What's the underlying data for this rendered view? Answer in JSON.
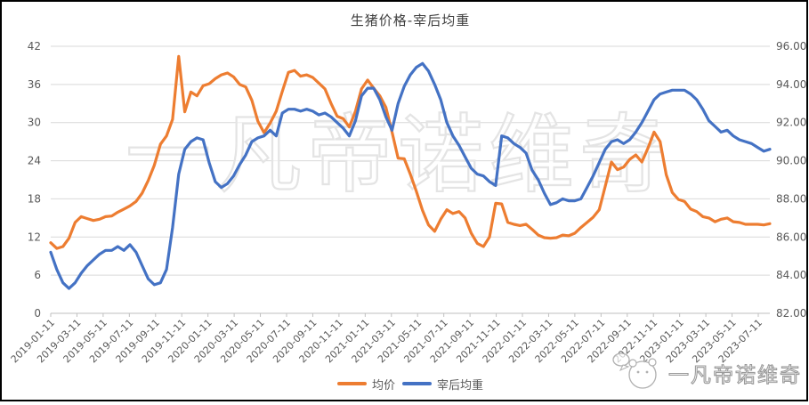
{
  "header": {
    "title": "生猪价格-宰后均重"
  },
  "watermarks": {
    "center": "一凡帝诺维奇",
    "corner": "一凡帝诺维奇"
  },
  "legend": {
    "items": [
      {
        "label": "均价",
        "color": "#ED7D31"
      },
      {
        "label": "宰后均重",
        "color": "#4472C4"
      }
    ]
  },
  "colors": {
    "grid": "#D9D9D9",
    "axis": "#BFBFBF",
    "tick_text": "#595959",
    "title_text": "#3F3F3F",
    "center_watermark": "#E4E4E4",
    "corner_watermark": "#9B9B9B"
  },
  "chart_data": {
    "type": "line",
    "title": "生猪价格-宰后均重",
    "start_date": "2019-01-11",
    "interval_days": 14,
    "grid": "horizontal",
    "legend_position": "bottom",
    "x_tick_labels": [
      "2019-01-11",
      "2019-03-11",
      "2019-05-11",
      "2019-07-11",
      "2019-09-11",
      "2019-11-11",
      "2020-01-11",
      "2020-03-11",
      "2020-05-11",
      "2020-07-11",
      "2020-09-11",
      "2020-11-11",
      "2021-01-11",
      "2021-03-11",
      "2021-05-11",
      "2021-07-11",
      "2021-09-11",
      "2021-11-11",
      "2022-01-11",
      "2022-03-11",
      "2022-05-11",
      "2022-07-11",
      "2022-09-11",
      "2022-11-11",
      "2023-01-11",
      "2023-03-11",
      "2023-05-11",
      "2023-07-11"
    ],
    "left_axis": {
      "min": 0,
      "max": 42,
      "ticks": [
        "0",
        "6",
        "12",
        "18",
        "24",
        "30",
        "36",
        "42"
      ]
    },
    "right_axis": {
      "min": 82,
      "max": 96,
      "ticks": [
        "82.00",
        "84.00",
        "86.00",
        "88.00",
        "90.00",
        "92.00",
        "94.00",
        "96.00"
      ]
    },
    "series": [
      {
        "name": "均价",
        "axis": "left",
        "color": "#ED7D31",
        "values": [
          11.1,
          10.2,
          10.5,
          11.8,
          14.3,
          15.2,
          14.9,
          14.6,
          14.8,
          15.2,
          15.3,
          15.9,
          16.4,
          16.9,
          17.6,
          18.9,
          20.9,
          23.3,
          26.6,
          27.9,
          30.5,
          40.4,
          31.7,
          34.8,
          34.2,
          35.8,
          36.1,
          36.9,
          37.5,
          37.8,
          37.2,
          36.0,
          35.6,
          33.5,
          30.2,
          28.4,
          29.9,
          31.8,
          34.9,
          37.9,
          38.2,
          37.3,
          37.5,
          37.1,
          36.2,
          35.3,
          33.0,
          31.0,
          30.6,
          29.3,
          31.8,
          35.3,
          36.7,
          35.4,
          34.2,
          32.4,
          28.5,
          24.4,
          24.3,
          21.9,
          19.2,
          16.2,
          13.9,
          12.9,
          14.8,
          16.3,
          15.7,
          16.0,
          15.0,
          12.6,
          11.0,
          10.5,
          12.0,
          17.3,
          17.2,
          14.3,
          14.0,
          13.8,
          14.0,
          13.2,
          12.3,
          11.9,
          11.8,
          11.9,
          12.3,
          12.2,
          12.6,
          13.5,
          14.3,
          15.1,
          16.3,
          20.0,
          23.8,
          22.6,
          23.0,
          24.2,
          24.9,
          23.8,
          26.0,
          28.5,
          27.0,
          21.8,
          19.0,
          17.9,
          17.6,
          16.4,
          16.0,
          15.2,
          15.0,
          14.4,
          14.8,
          15.0,
          14.4,
          14.3,
          14.0,
          14.0,
          14.0,
          13.9,
          14.1
        ]
      },
      {
        "name": "宰后均重",
        "axis": "right",
        "color": "#4472C4",
        "values": [
          85.2,
          84.3,
          83.6,
          83.3,
          83.6,
          84.1,
          84.5,
          84.8,
          85.1,
          85.3,
          85.3,
          85.5,
          85.3,
          85.6,
          85.2,
          84.5,
          83.8,
          83.5,
          83.6,
          84.3,
          86.5,
          89.3,
          90.6,
          91.0,
          91.2,
          91.1,
          89.9,
          88.9,
          88.6,
          88.8,
          89.2,
          89.8,
          90.3,
          91.0,
          91.2,
          91.3,
          91.6,
          91.3,
          92.5,
          92.7,
          92.7,
          92.6,
          92.7,
          92.6,
          92.4,
          92.5,
          92.3,
          92.0,
          91.7,
          91.3,
          92.1,
          93.4,
          93.8,
          93.8,
          93.2,
          92.3,
          91.6,
          93.0,
          93.9,
          94.5,
          94.9,
          95.1,
          94.7,
          94.0,
          93.2,
          92.0,
          91.3,
          90.8,
          90.2,
          89.6,
          89.3,
          89.2,
          88.9,
          88.7,
          91.3,
          91.2,
          90.9,
          90.7,
          90.4,
          89.5,
          89.0,
          88.3,
          87.7,
          87.8,
          88.0,
          87.9,
          87.9,
          88.0,
          88.6,
          89.2,
          89.9,
          90.6,
          91.0,
          91.1,
          90.9,
          91.1,
          91.5,
          92.0,
          92.6,
          93.2,
          93.5,
          93.6,
          93.7,
          93.7,
          93.7,
          93.5,
          93.2,
          92.7,
          92.1,
          91.8,
          91.5,
          91.6,
          91.3,
          91.1,
          91.0,
          90.9,
          90.7,
          90.5,
          90.6
        ]
      }
    ]
  }
}
